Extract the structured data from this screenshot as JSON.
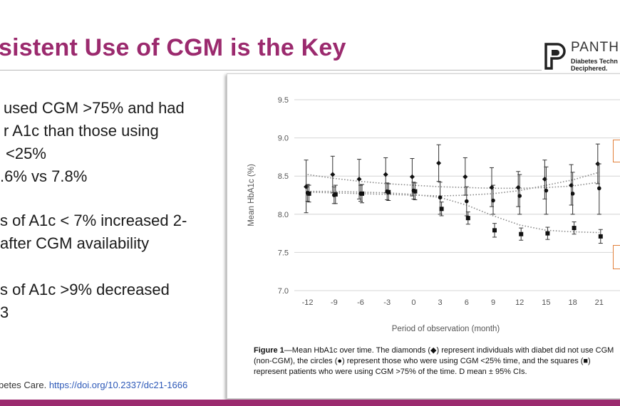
{
  "slide": {
    "title": "sistent Use of CGM is the Key",
    "accent_color": "#9b2a6e",
    "logo": {
      "wordmark": "PANTH",
      "tagline_1": "Diabetes Techn",
      "tagline_2": "Deciphered.",
      "icon": "panther-p-logo-icon"
    },
    "bullets": [
      "used CGM >75% and had",
      "r A1c than those using",
      "<25%",
      ".6% vs 7.8%",
      "s of A1c < 7% increased  2-",
      "after CGM availability",
      "s of A1c >9% decreased",
      "3"
    ],
    "citation": {
      "prefix": "betes Care. ",
      "link": "https://doi.org/10.2337/dc21-1666"
    }
  },
  "figure": {
    "caption_label": "Figure 1",
    "caption_text": "—Mean HbA1c over time. The diamonds (◆) represent individuals with diabet did not use CGM (non-CGM), the circles (●) represent those who were using CGM <25% time, and the squares (■) represent patients who were using CGM >75% of the time. D mean ± 95% CIs."
  },
  "chart_data": {
    "type": "scatter",
    "title": "",
    "xlabel": "Period of observation (month)",
    "ylabel": "Mean HbA1c (%)",
    "x": [
      -12,
      -9,
      -6,
      -3,
      0,
      3,
      6,
      9,
      12,
      15,
      18,
      21
    ],
    "ylim": [
      7.0,
      9.5
    ],
    "yticks": [
      "7.0",
      "7.5",
      "8.0",
      "8.5",
      "9.0",
      "9.5"
    ],
    "grid": true,
    "series": [
      {
        "name": "non-CGM",
        "marker": "diamond",
        "values": [
          8.36,
          8.52,
          8.46,
          8.52,
          8.49,
          8.67,
          8.49,
          8.35,
          8.35,
          8.46,
          8.38,
          8.66
        ],
        "ci_low": [
          8.02,
          8.28,
          8.2,
          8.28,
          8.24,
          8.43,
          8.25,
          8.1,
          8.1,
          8.2,
          8.12,
          8.4
        ],
        "ci_high": [
          8.71,
          8.76,
          8.72,
          8.74,
          8.73,
          8.91,
          8.74,
          8.61,
          8.56,
          8.71,
          8.65,
          8.92
        ],
        "trend": [
          8.52,
          8.47,
          8.43,
          8.4,
          8.38,
          8.36,
          8.35,
          8.34,
          8.34,
          8.35,
          8.37,
          8.42
        ]
      },
      {
        "name": "CGM <25%",
        "marker": "circle",
        "values": [
          8.28,
          8.25,
          8.27,
          8.3,
          8.31,
          8.22,
          8.17,
          8.18,
          8.24,
          8.31,
          8.27,
          8.34
        ],
        "ci_low": [
          8.17,
          8.14,
          8.17,
          8.19,
          8.2,
          8.0,
          7.98,
          8.0,
          8.0,
          8.0,
          8.0,
          8.0
        ],
        "ci_high": [
          8.39,
          8.36,
          8.38,
          8.41,
          8.42,
          8.42,
          8.36,
          8.38,
          8.52,
          8.62,
          8.55,
          8.66
        ],
        "trend": [
          8.29,
          8.28,
          8.27,
          8.26,
          8.25,
          8.24,
          8.25,
          8.27,
          8.31,
          8.38,
          8.45,
          8.55
        ]
      },
      {
        "name": "CGM >75%",
        "marker": "square",
        "values": [
          8.27,
          8.26,
          8.27,
          8.29,
          8.3,
          8.07,
          7.95,
          7.79,
          7.74,
          7.75,
          7.82,
          7.71
        ],
        "ci_low": [
          8.16,
          8.14,
          8.15,
          8.18,
          8.19,
          7.98,
          7.87,
          7.7,
          7.66,
          7.67,
          7.74,
          7.62
        ],
        "ci_high": [
          8.38,
          8.38,
          8.39,
          8.4,
          8.41,
          8.16,
          8.03,
          7.88,
          7.82,
          7.83,
          7.9,
          7.8
        ],
        "trend": [
          8.3,
          8.3,
          8.29,
          8.28,
          8.26,
          8.22,
          8.12,
          7.98,
          7.86,
          7.79,
          7.77,
          7.76
        ]
      }
    ]
  }
}
